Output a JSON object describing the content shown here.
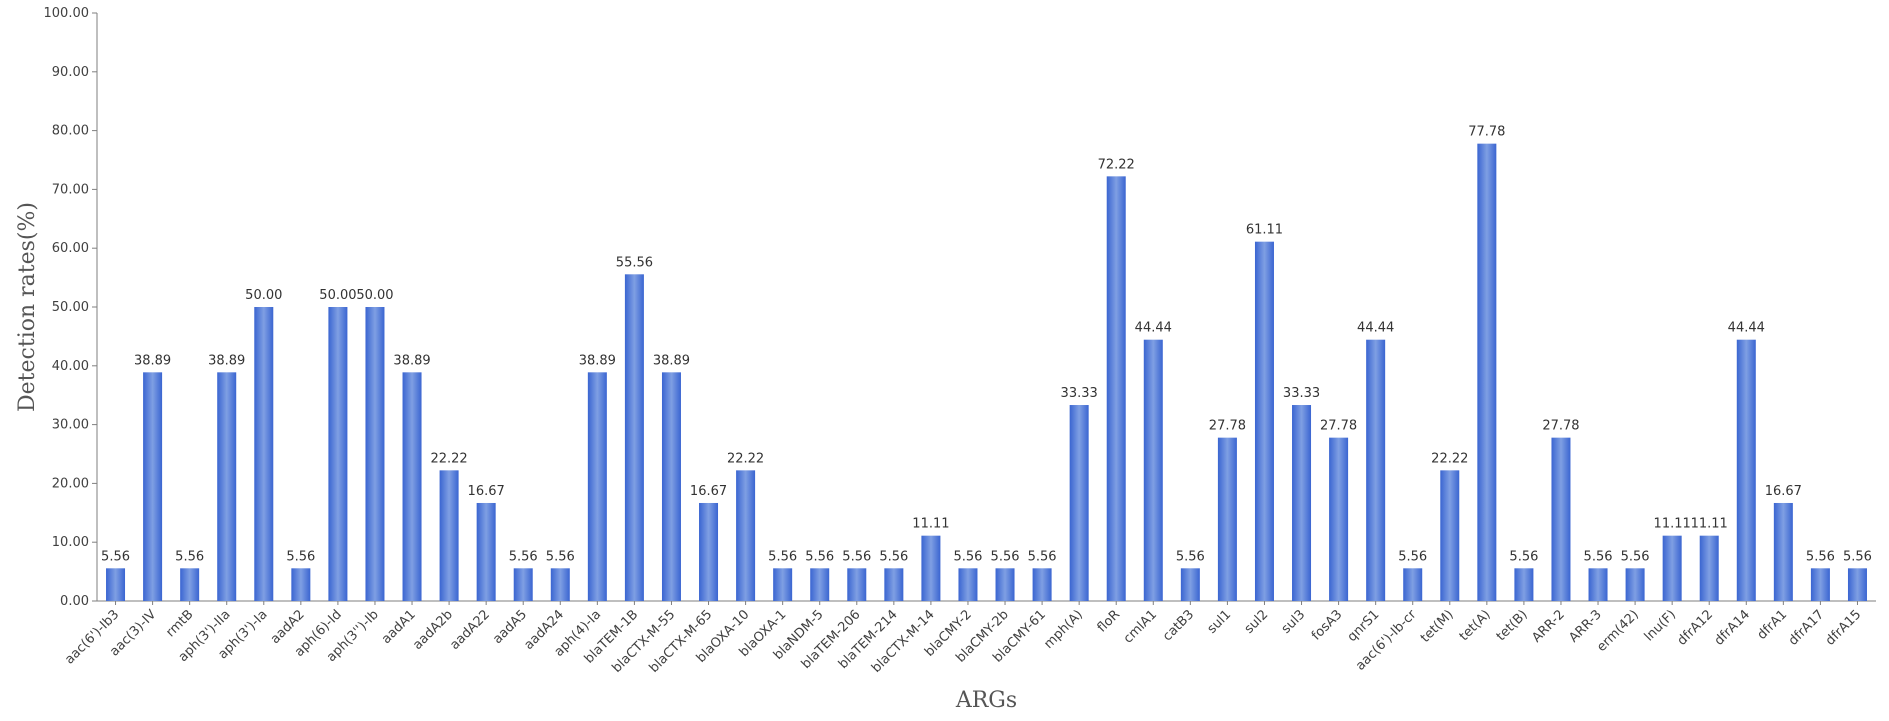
{
  "chart_data": {
    "type": "bar",
    "title": "",
    "xlabel": "ARGs",
    "ylabel": "Detection rates(%)",
    "ylim": [
      0,
      100
    ],
    "yticks": [
      "0.00",
      "10.00",
      "20.00",
      "30.00",
      "40.00",
      "50.00",
      "60.00",
      "70.00",
      "80.00",
      "90.00",
      "100.00"
    ],
    "grid": false,
    "legend": "none",
    "bar_color": "#3a65d1",
    "categories": [
      "aac(6')-Ib3",
      "aac(3)-IV",
      "rmtB",
      "aph(3')-IIa",
      "aph(3')-Ia",
      "aadA2",
      "aph(6)-Id",
      "aph(3'')-Ib",
      "aadA1",
      "aadA2b",
      "aadA22",
      "aadA5",
      "aadA24",
      "aph(4)-Ia",
      "blaTEM-1B",
      "blaCTX-M-55",
      "blaCTX-M-65",
      "blaOXA-10",
      "blaOXA-1",
      "blaNDM-5",
      "blaTEM-206",
      "blaTEM-214",
      "blaCTX-M-14",
      "blaCMY-2",
      "blaCMY-2b",
      "blaCMY-61",
      "mph(A)",
      "floR",
      "cmlA1",
      "catB3",
      "sul1",
      "sul2",
      "sul3",
      "fosA3",
      "qnrS1",
      "aac(6')-Ib-cr",
      "tet(M)",
      "tet(A)",
      "tet(B)",
      "ARR-2",
      "ARR-3",
      "erm(42)",
      "lnu(F)",
      "dfrA12",
      "dfrA14",
      "dfrA1",
      "dfrA17",
      "dfrA15"
    ],
    "values": [
      5.56,
      38.89,
      5.56,
      38.89,
      50.0,
      5.56,
      50.0,
      50.0,
      38.89,
      22.22,
      16.67,
      5.56,
      5.56,
      38.89,
      55.56,
      38.89,
      16.67,
      22.22,
      5.56,
      5.56,
      5.56,
      5.56,
      11.11,
      5.56,
      5.56,
      5.56,
      33.33,
      72.22,
      44.44,
      5.56,
      27.78,
      61.11,
      33.33,
      27.78,
      44.44,
      5.56,
      22.22,
      77.78,
      5.56,
      27.78,
      5.56,
      5.56,
      11.11,
      11.11,
      44.44,
      16.67,
      5.56,
      5.56
    ],
    "value_labels": [
      "5.56",
      "38.89",
      "5.56",
      "38.89",
      "50.00",
      "5.56",
      "50.00",
      "50.00",
      "38.89",
      "22.22",
      "16.67",
      "5.56",
      "5.56",
      "38.89",
      "55.56",
      "38.89",
      "16.67",
      "22.22",
      "5.56",
      "5.56",
      "5.56",
      "5.56",
      "11.11",
      "5.56",
      "5.56",
      "5.56",
      "33.33",
      "72.22",
      "44.44",
      "5.56",
      "27.78",
      "61.11",
      "33.33",
      "27.78",
      "44.44",
      "5.56",
      "22.22",
      "77.78",
      "5.56",
      "27.78",
      "5.56",
      "5.56",
      "11.11",
      "11.11",
      "44.44",
      "16.67",
      "5.56",
      "5.56"
    ]
  }
}
